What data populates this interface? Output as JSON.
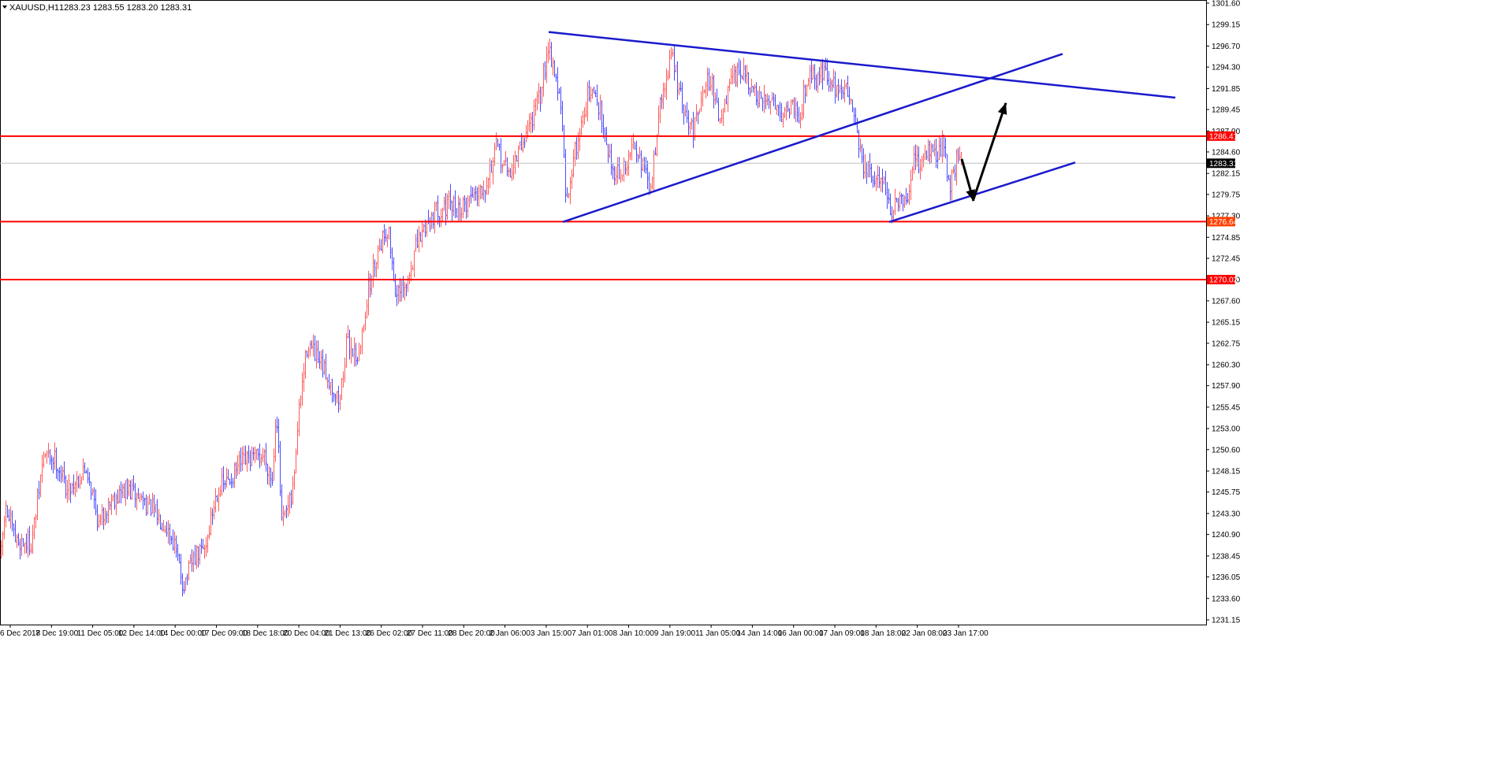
{
  "header": {
    "symbol": "XAUUSD,H1",
    "ohlc": "1283.23 1283.55 1283.20 1283.31"
  },
  "colors": {
    "bull_bar": "#ff5a5a",
    "bear_bar": "#4a4aff",
    "trendline": "#1a1acc",
    "level_line": "#ff0000",
    "current_line": "#c0c0c0",
    "arrow": "#000000",
    "label_red": "#ff0000",
    "label_orange": "#ff4000",
    "label_current": "#000000"
  },
  "chart_data": {
    "type": "bar",
    "symbol": "XAUUSD",
    "timeframe": "H1",
    "ylim": [
      1231.15,
      1301.6
    ],
    "y_ticks": [
      "1301.60",
      "1299.15",
      "1296.70",
      "1294.30",
      "1291.85",
      "1289.45",
      "1287.00",
      "1284.60",
      "1282.15",
      "1279.75",
      "1277.30",
      "1274.85",
      "1272.45",
      "1270.00",
      "1267.60",
      "1265.15",
      "1262.75",
      "1260.30",
      "1257.90",
      "1255.45",
      "1253.00",
      "1250.60",
      "1248.15",
      "1245.75",
      "1243.30",
      "1240.90",
      "1238.45",
      "1236.05",
      "1233.60",
      "1231.15"
    ],
    "x_ticks": [
      "6 Dec 2018",
      "7 Dec 19:00",
      "11 Dec 05:00",
      "12 Dec 14:00",
      "14 Dec 00:00",
      "17 Dec 09:00",
      "18 Dec 18:00",
      "20 Dec 04:00",
      "21 Dec 13:00",
      "26 Dec 02:00",
      "27 Dec 11:00",
      "28 Dec 20:00",
      "2 Jan 06:00",
      "3 Jan 15:00",
      "7 Jan 01:00",
      "8 Jan 10:00",
      "9 Jan 19:00",
      "11 Jan 05:00",
      "14 Jan 14:00",
      "16 Jan 00:00",
      "17 Jan 09:00",
      "18 Jan 18:00",
      "22 Jan 08:00",
      "23 Jan 17:00"
    ],
    "close_path": [
      [
        0,
        1237.5
      ],
      [
        6,
        1244.0
      ],
      [
        20,
        1240.0
      ],
      [
        40,
        1240.0
      ],
      [
        55,
        1250.0
      ],
      [
        70,
        1249.5
      ],
      [
        85,
        1246.0
      ],
      [
        110,
        1248.5
      ],
      [
        125,
        1242.0
      ],
      [
        140,
        1245.0
      ],
      [
        160,
        1246.0
      ],
      [
        180,
        1245.0
      ],
      [
        195,
        1243.5
      ],
      [
        210,
        1242.0
      ],
      [
        220,
        1240.0
      ],
      [
        232,
        1235.0
      ],
      [
        245,
        1238.0
      ],
      [
        260,
        1239.5
      ],
      [
        275,
        1246.0
      ],
      [
        290,
        1247.0
      ],
      [
        305,
        1249.0
      ],
      [
        320,
        1249.5
      ],
      [
        335,
        1250.0
      ],
      [
        345,
        1247.0
      ],
      [
        350,
        1256.0
      ],
      [
        357,
        1242.0
      ],
      [
        370,
        1245.0
      ],
      [
        380,
        1256.0
      ],
      [
        390,
        1263.0
      ],
      [
        400,
        1261.0
      ],
      [
        415,
        1259.0
      ],
      [
        430,
        1256.0
      ],
      [
        440,
        1263.0
      ],
      [
        455,
        1261.0
      ],
      [
        465,
        1268.0
      ],
      [
        480,
        1274.0
      ],
      [
        492,
        1276.0
      ],
      [
        502,
        1268.0
      ],
      [
        515,
        1269.0
      ],
      [
        525,
        1273.0
      ],
      [
        540,
        1276.5
      ],
      [
        555,
        1278.0
      ],
      [
        570,
        1278.5
      ],
      [
        585,
        1278.0
      ],
      [
        600,
        1280.0
      ],
      [
        615,
        1281.0
      ],
      [
        630,
        1285.0
      ],
      [
        645,
        1282.0
      ],
      [
        660,
        1285.0
      ],
      [
        672,
        1288.0
      ],
      [
        685,
        1291.0
      ],
      [
        695,
        1297.0
      ],
      [
        705,
        1293.0
      ],
      [
        712,
        1289.0
      ],
      [
        718,
        1278.0
      ],
      [
        725,
        1283.0
      ],
      [
        735,
        1287.0
      ],
      [
        745,
        1291.0
      ],
      [
        755,
        1291.0
      ],
      [
        765,
        1288.0
      ],
      [
        775,
        1283.0
      ],
      [
        785,
        1282.0
      ],
      [
        795,
        1283.0
      ],
      [
        805,
        1286.0
      ],
      [
        815,
        1283.0
      ],
      [
        825,
        1280.0
      ],
      [
        835,
        1289.0
      ],
      [
        845,
        1293.0
      ],
      [
        852,
        1296.0
      ],
      [
        860,
        1292.0
      ],
      [
        870,
        1288.0
      ],
      [
        880,
        1287.0
      ],
      [
        890,
        1292.0
      ],
      [
        900,
        1293.0
      ],
      [
        915,
        1288.0
      ],
      [
        925,
        1292.0
      ],
      [
        940,
        1294.0
      ],
      [
        950,
        1292.0
      ],
      [
        965,
        1290.0
      ],
      [
        980,
        1291.0
      ],
      [
        990,
        1289.0
      ],
      [
        1005,
        1290.0
      ],
      [
        1015,
        1289.0
      ],
      [
        1025,
        1294.0
      ],
      [
        1035,
        1293.0
      ],
      [
        1045,
        1294.0
      ],
      [
        1055,
        1292.0
      ],
      [
        1065,
        1292.0
      ],
      [
        1080,
        1291.0
      ],
      [
        1088,
        1286.0
      ],
      [
        1095,
        1283.0
      ],
      [
        1110,
        1281.0
      ],
      [
        1120,
        1282.0
      ],
      [
        1130,
        1277.5
      ],
      [
        1140,
        1279.0
      ],
      [
        1150,
        1278.0
      ],
      [
        1158,
        1284.0
      ],
      [
        1165,
        1283.0
      ],
      [
        1175,
        1285.0
      ],
      [
        1185,
        1284.0
      ],
      [
        1195,
        1285.5
      ],
      [
        1205,
        1281.0
      ],
      [
        1215,
        1284.5
      ],
      [
        1220,
        1283.31
      ]
    ],
    "horizontal_levels": [
      {
        "price": 1286.41,
        "label": "1286.41"
      },
      {
        "price": 1276.64,
        "label": "1276.64"
      },
      {
        "price": 1270.02,
        "label": "1270.02"
      }
    ],
    "current_price": {
      "price": 1283.31,
      "label": "1283.31"
    },
    "trendlines": [
      {
        "from": [
          696,
          1298.3
        ],
        "to": [
          1491,
          1290.8
        ]
      },
      {
        "from": [
          714,
          1276.6
        ],
        "to": [
          1348,
          1295.8
        ]
      },
      {
        "from": [
          1128,
          1276.6
        ],
        "to": [
          1364,
          1283.4
        ]
      }
    ],
    "arrows": [
      {
        "from": [
          1220,
          1283.8
        ],
        "to": [
          1235,
          1279.0
        ]
      },
      {
        "from": [
          1235,
          1279.2
        ],
        "to": [
          1276,
          1290.2
        ]
      }
    ],
    "grid": false,
    "legend": "none"
  }
}
